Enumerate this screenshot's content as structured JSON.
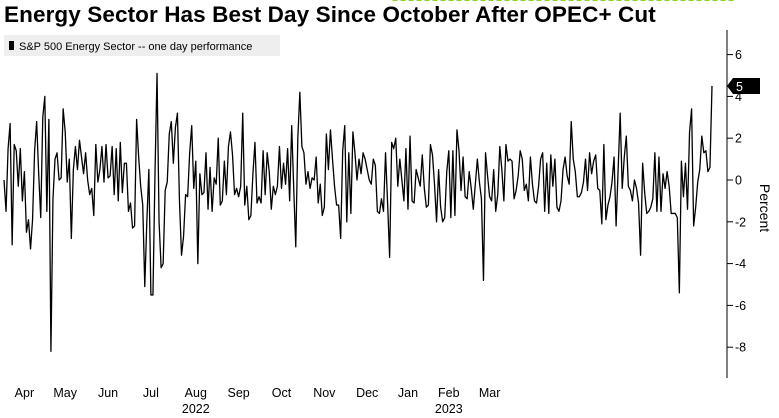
{
  "chart_data": {
    "type": "line",
    "title": "Energy Sector Has Best Day Since October After OPEC+ Cut",
    "ylabel": "Percent",
    "ylim": [
      -9.5,
      7.2
    ],
    "yticks": [
      6,
      4,
      2,
      0,
      -2,
      -4,
      -6,
      -8
    ],
    "grid": false,
    "legend_position": "top-left",
    "x_month_labels": [
      "Apr",
      "May",
      "Jun",
      "Jul",
      "Aug",
      "Sep",
      "Oct",
      "Nov",
      "Dec",
      "Jan",
      "Feb",
      "Mar"
    ],
    "x_year_labels": [
      "2022",
      "2023"
    ],
    "last_value_label": "5",
    "series": [
      {
        "name": "S&P 500 Energy Sector -- one day performance",
        "color": "#000000",
        "values": [
          0.0,
          -1.5,
          1.5,
          2.7,
          -3.1,
          1.7,
          1.4,
          -0.3,
          1.5,
          -1.0,
          0.4,
          -2.5,
          -1.9,
          -3.3,
          -1.9,
          1.4,
          2.8,
          0.3,
          -1.8,
          3.0,
          4.0,
          -1.5,
          2.9,
          -8.2,
          -0.9,
          1.0,
          1.3,
          0.0,
          0.1,
          3.4,
          2.3,
          -0.1,
          1.0,
          -2.8,
          0.5,
          1.6,
          0.5,
          1.9,
          1.1,
          0.3,
          1.3,
          0.0,
          -0.7,
          -0.4,
          -1.7,
          1.7,
          -0.1,
          0.5,
          1.6,
          -0.1,
          1.7,
          0.1,
          0.2,
          1.6,
          -0.7,
          1.5,
          -1.0,
          1.8,
          -0.6,
          0.8,
          0.8,
          -1.5,
          -1.1,
          -2.3,
          -2.2,
          2.9,
          1.1,
          -0.3,
          -1.2,
          -5.1,
          -2.0,
          0.5,
          -5.5,
          -5.5,
          0.3,
          5.1,
          -2.0,
          -4.2,
          -4.0,
          -0.5,
          -0.1,
          2.2,
          2.8,
          0.8,
          2.5,
          3.2,
          -1.0,
          -3.6,
          -2.7,
          -0.7,
          -0.8,
          1.3,
          2.6,
          -0.4,
          0.9,
          -4.0,
          0.3,
          -0.7,
          -0.6,
          1.3,
          -1.4,
          0.6,
          -1.5,
          0.1,
          -0.2,
          2.0,
          -1.2,
          -1.0,
          0.9,
          -0.7,
          1.6,
          2.3,
          1.2,
          -0.7,
          -0.4,
          -0.8,
          -0.3,
          3.2,
          -1.2,
          -0.3,
          -1.9,
          -1.7,
          0.3,
          1.8,
          -1.1,
          -0.8,
          -1.1,
          1.4,
          -0.7,
          1.3,
          0.4,
          -1.4,
          -0.3,
          -0.7,
          -0.3,
          1.6,
          -0.4,
          0.8,
          -0.2,
          1.5,
          -1.0,
          2.6,
          -0.4,
          -3.2,
          2.0,
          4.2,
          1.6,
          1.3,
          -0.2,
          0.4,
          -0.4,
          0.1,
          0.0,
          1.1,
          -1.1,
          -0.2,
          -1.7,
          -1.3,
          2.2,
          0.5,
          2.4,
          1.0,
          -0.3,
          -1.2,
          -1.2,
          -2.8,
          1.4,
          2.6,
          -2.0,
          1.3,
          -1.6,
          2.3,
          1.3,
          0.0,
          1.0,
          0.3,
          1.3,
          1.0,
          0.5,
          0.0,
          -0.2,
          1.0,
          0.7,
          -1.5,
          -1.6,
          -0.9,
          -1.5,
          1.3,
          -1.1,
          -3.7,
          1.8,
          1.5,
          2.0,
          -0.3,
          1.0,
          0.0,
          -1.0,
          1.5,
          -1.4,
          2.1,
          -1.0,
          -1.1,
          0.5,
          0.1,
          -0.3,
          1.2,
          -0.4,
          -1.3,
          -1.2,
          1.7,
          1.2,
          -0.2,
          -2.0,
          0.5,
          -1.3,
          -2.0,
          -1.8,
          0.4,
          1.4,
          -1.8,
          1.4,
          -1.7,
          2.4,
          1.4,
          -0.5,
          1.1,
          -0.8,
          -0.9,
          0.4,
          -0.4,
          -1.4,
          -0.2,
          1.0,
          -0.1,
          -0.9,
          -4.8,
          1.3,
          0.2,
          -0.8,
          -1.0,
          0.5,
          -1.5,
          -0.7,
          1.6,
          0.5,
          -1.0,
          1.7,
          0.9,
          1.0,
          0.9,
          -0.9,
          -0.5,
          0.2,
          1.4,
          1.0,
          -0.5,
          -0.2,
          -1.0,
          1.1,
          -0.2,
          -1.0,
          -1.1,
          -0.3,
          1.0,
          1.3,
          -1.5,
          0.8,
          -1.6,
          1.2,
          -0.3,
          1.0,
          -1.3,
          -1.5,
          -1.0,
          0.5,
          1.1,
          0.2,
          -0.2,
          2.8,
          1.0,
          0.4,
          -0.8,
          -0.8,
          -0.6,
          -0.1,
          1.0,
          -0.5,
          1.3,
          0.3,
          0.9,
          1.2,
          -0.4,
          -0.5,
          -2.1,
          1.7,
          -1.9,
          -1.2,
          -0.8,
          -0.1,
          1.1,
          -2.2,
          0.5,
          3.2,
          -0.4,
          1.1,
          2.1,
          -0.3,
          -0.5,
          -1.0,
          0.0,
          -0.4,
          -1.1,
          -3.6,
          0.8,
          -0.6,
          -1.6,
          -1.5,
          -1.3,
          -0.9,
          1.3,
          -1.5,
          1.1,
          -1.5,
          0.3,
          -0.4,
          0.4,
          -0.3,
          -1.6,
          -1.6,
          -1.6,
          -1.8,
          -5.4,
          0.9,
          -0.8,
          0.8,
          -1.4,
          2.3,
          3.4,
          -2.2,
          -1.3,
          -0.1,
          0.5,
          2.1,
          1.3,
          1.4,
          0.4,
          0.6,
          4.5
        ]
      }
    ],
    "annotation": {
      "type": "dashed-arrow",
      "color": "#8bd12a",
      "from_index": 359,
      "to_index": 182
    }
  }
}
